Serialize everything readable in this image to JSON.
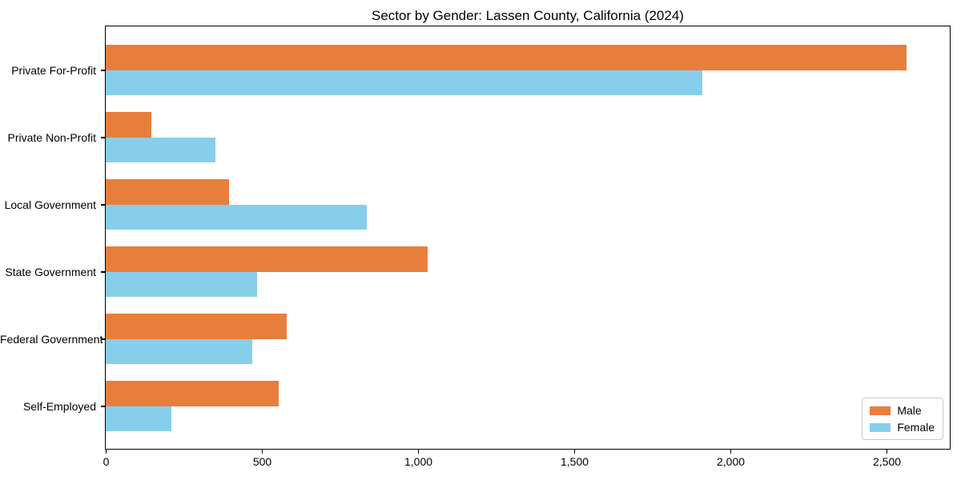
{
  "chart_data": {
    "type": "bar",
    "orientation": "horizontal",
    "title": "Sector by Gender: Lassen County, California (2024)",
    "categories": [
      "Private For-Profit",
      "Private Non-Profit",
      "Local Government",
      "State Government",
      "Federal Government",
      "Self-Employed"
    ],
    "series": [
      {
        "name": "Male",
        "color": "#e87e3c",
        "values": [
          2565,
          145,
          395,
          1030,
          580,
          555
        ]
      },
      {
        "name": "Female",
        "color": "#87ceeb",
        "values": [
          1910,
          350,
          835,
          485,
          470,
          210
        ]
      }
    ],
    "xlabel": "",
    "ylabel": "",
    "xlim": [
      0,
      2700
    ],
    "x_ticks": [
      0,
      500,
      1000,
      1500,
      2000,
      2500
    ],
    "x_tick_labels": [
      "0",
      "500",
      "1,000",
      "1,500",
      "2,000",
      "2,500"
    ],
    "grid": false,
    "legend_position": "lower right",
    "axis_color": "#000000",
    "background_color": "#ffffff"
  }
}
